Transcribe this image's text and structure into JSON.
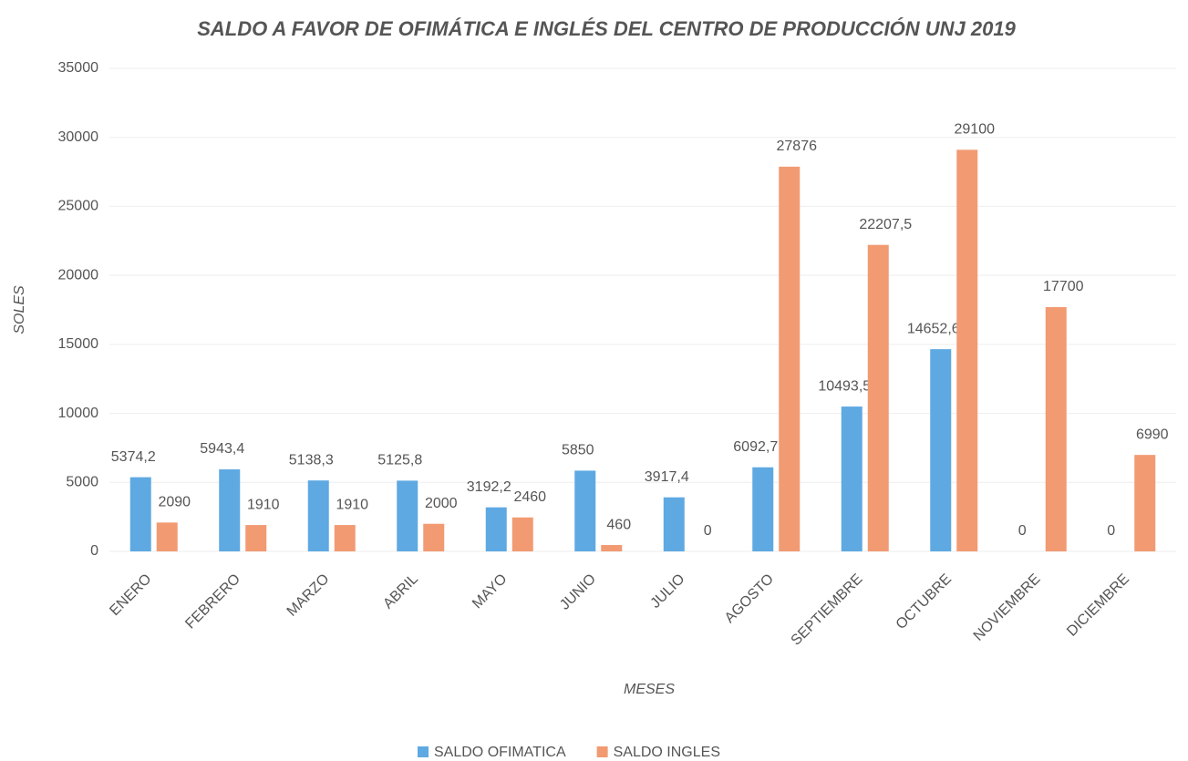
{
  "chart_data": {
    "type": "bar",
    "title": "SALDO A FAVOR DE OFIMÁTICA  E INGLÉS DEL CENTRO DE PRODUCCIÓN UNJ 2019",
    "x_label": "MESES",
    "y_label": "SOLES",
    "categories": [
      "ENERO",
      "FEBRERO",
      "MARZO",
      "ABRIL",
      "MAYO",
      "JUNIO",
      "JULIO",
      "AGOSTO",
      "SEPTIEMBRE",
      "OCTUBRE",
      "NOVIEMBRE",
      "DICIEMBRE"
    ],
    "series": [
      {
        "name": "SALDO OFIMATICA",
        "color": "#5ea9e2",
        "values": [
          5374.2,
          5943.4,
          5138.3,
          5125.8,
          3192.2,
          5850,
          3917.4,
          6092.7,
          10493.5,
          14652.6,
          0,
          0
        ],
        "value_labels": [
          "5374,2",
          "5943,4",
          "5138,3",
          "5125,8",
          "3192,2",
          "5850",
          "3917,4",
          "6092,7",
          "10493,5",
          "14652,6",
          "0",
          "0"
        ]
      },
      {
        "name": "SALDO INGLES",
        "color": "#f29a72",
        "values": [
          2090,
          1910,
          1910,
          2000,
          2460,
          460,
          0,
          27876,
          22207.5,
          29100,
          17700,
          6990
        ],
        "value_labels": [
          "2090",
          "1910",
          "1910",
          "2000",
          "2460",
          "460",
          "0",
          "27876",
          "22207,5",
          "29100",
          "17700",
          "6990"
        ]
      }
    ],
    "ylim": [
      0,
      35000
    ],
    "yticks": [
      0,
      5000,
      10000,
      15000,
      20000,
      25000,
      30000,
      35000
    ],
    "grid": true,
    "legend": "bottom"
  }
}
